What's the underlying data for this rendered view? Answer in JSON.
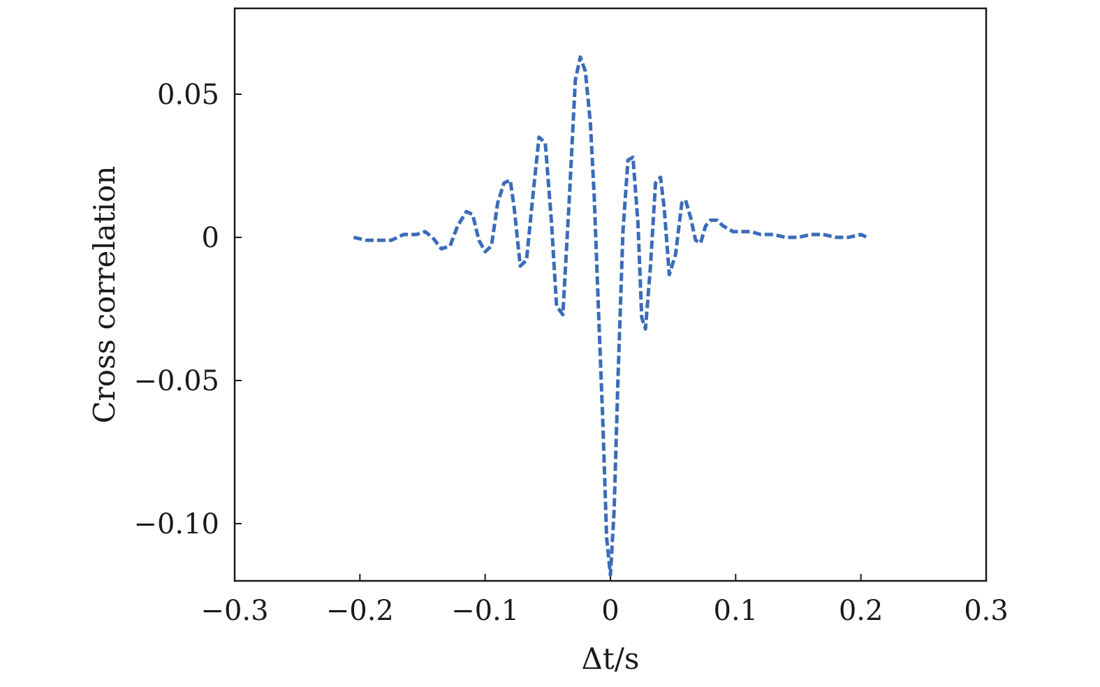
{
  "chart_data": {
    "type": "line",
    "title": "",
    "xlabel": "Δt/s",
    "ylabel": "Cross correlation",
    "xlim": [
      -0.3,
      0.3
    ],
    "ylim": [
      -0.12,
      0.08
    ],
    "xticks": [
      -0.3,
      -0.2,
      -0.1,
      0,
      0.1,
      0.2,
      0.3
    ],
    "xtick_labels": [
      "−0.3",
      "−0.2",
      "−0.1",
      "0",
      "0.1",
      "0.2",
      "0.3"
    ],
    "yticks": [
      -0.1,
      -0.05,
      0,
      0.05
    ],
    "ytick_labels": [
      "−0.10",
      "−0.05",
      "0",
      "0.05"
    ],
    "grid": false,
    "line_color": "#3a6cb8",
    "line_style": "dashed",
    "series": [
      {
        "x": [
          -0.205,
          -0.195,
          -0.185,
          -0.175,
          -0.165,
          -0.155,
          -0.148,
          -0.142,
          -0.135,
          -0.128,
          -0.122,
          -0.115,
          -0.11,
          -0.105,
          -0.1,
          -0.095,
          -0.09,
          -0.085,
          -0.08,
          -0.077,
          -0.072,
          -0.067,
          -0.062,
          -0.057,
          -0.052,
          -0.047,
          -0.043,
          -0.038,
          -0.033,
          -0.028,
          -0.024,
          -0.02,
          -0.016,
          -0.013,
          -0.01,
          -0.006,
          -0.003,
          0.0,
          0.003,
          0.006,
          0.01,
          0.014,
          0.018,
          0.022,
          0.025,
          0.028,
          0.032,
          0.036,
          0.04,
          0.043,
          0.047,
          0.052,
          0.057,
          0.06,
          0.064,
          0.068,
          0.072,
          0.076,
          0.08,
          0.085,
          0.09,
          0.094,
          0.098,
          0.102,
          0.107,
          0.112,
          0.12,
          0.13,
          0.14,
          0.15,
          0.16,
          0.17,
          0.18,
          0.19,
          0.2,
          0.205
        ],
        "y": [
          0.0,
          -0.001,
          -0.001,
          -0.001,
          0.001,
          0.001,
          0.002,
          0.0,
          -0.004,
          -0.003,
          0.004,
          0.009,
          0.008,
          -0.001,
          -0.005,
          -0.003,
          0.012,
          0.019,
          0.02,
          0.011,
          -0.01,
          -0.008,
          0.014,
          0.035,
          0.033,
          0.005,
          -0.024,
          -0.027,
          0.012,
          0.055,
          0.063,
          0.058,
          0.04,
          0.015,
          -0.02,
          -0.065,
          -0.105,
          -0.118,
          -0.095,
          -0.05,
          0.002,
          0.027,
          0.028,
          0.005,
          -0.028,
          -0.032,
          -0.01,
          0.019,
          0.021,
          0.01,
          -0.013,
          -0.006,
          0.012,
          0.013,
          0.007,
          -0.001,
          -0.002,
          0.004,
          0.006,
          0.006,
          0.004,
          0.003,
          0.002,
          0.002,
          0.002,
          0.002,
          0.001,
          0.001,
          0.0,
          0.0,
          0.001,
          0.001,
          0.0,
          0.0,
          0.001,
          0.0
        ]
      }
    ]
  }
}
